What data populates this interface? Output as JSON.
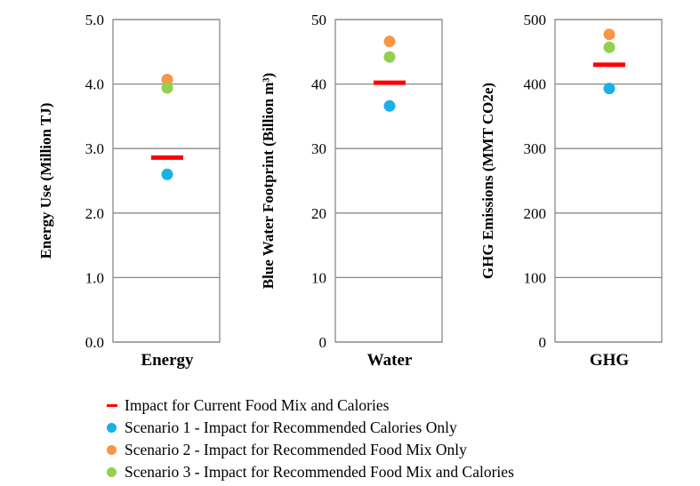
{
  "chart_data": [
    {
      "type": "scatter",
      "category": "Energy",
      "ylabel": "Energy Use (Million TJ)",
      "ylim": [
        0,
        5
      ],
      "yticks": [
        "0.0",
        "1.0",
        "2.0",
        "3.0",
        "4.0",
        "5.0"
      ],
      "grid": true,
      "current": 2.86,
      "scenarios": [
        2.6,
        4.07,
        3.94
      ]
    },
    {
      "type": "scatter",
      "category": "Water",
      "ylabel": "Blue Water Footprint (Billion m³)",
      "ylim": [
        0,
        50
      ],
      "yticks": [
        "0",
        "10",
        "20",
        "30",
        "40",
        "50"
      ],
      "grid": true,
      "current": 40.2,
      "scenarios": [
        36.6,
        46.6,
        44.2
      ]
    },
    {
      "type": "scatter",
      "category": "GHG",
      "ylabel": "GHG Emissions (MMT CO2e)",
      "ylim": [
        0,
        500
      ],
      "yticks": [
        "0",
        "100",
        "200",
        "300",
        "400",
        "500"
      ],
      "grid": true,
      "current": 430,
      "scenarios": [
        393,
        477,
        457
      ]
    }
  ],
  "legend": [
    {
      "label": "Impact for Current Food Mix and Calories",
      "color": "#ff0000",
      "symbol": "dash"
    },
    {
      "label": "Scenario 1 - Impact for Recommended Calories Only",
      "color": "#1ab0e8",
      "symbol": "dot"
    },
    {
      "label": "Scenario 2 - Impact for Recommended Food Mix Only",
      "color": "#f79646",
      "symbol": "dot"
    },
    {
      "label": "Scenario 3 - Impact for Recommended Food Mix and Calories",
      "color": "#92d050",
      "symbol": "dot"
    }
  ]
}
